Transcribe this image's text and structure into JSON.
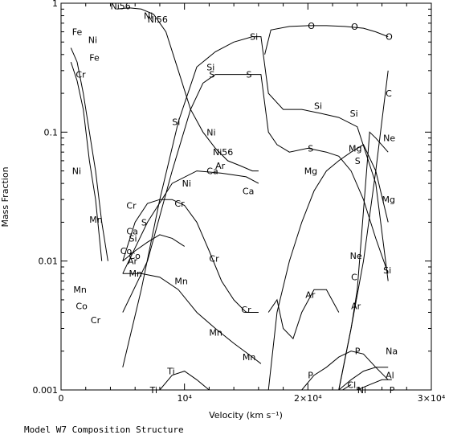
{
  "caption": "Model W7 Composition Structure",
  "chart_data": {
    "type": "line",
    "xlabel": "Velocity (km s⁻¹)",
    "ylabel": "Mass Fraction",
    "xlim": [
      0,
      30000
    ],
    "ylim": [
      0.001,
      1
    ],
    "yscale": "log",
    "x_ticks": [
      {
        "value": 0,
        "label": "0"
      },
      {
        "value": 10000,
        "label": "10⁴"
      },
      {
        "value": 20000,
        "label": "2×10⁴"
      },
      {
        "value": 30000,
        "label": "3×10⁴"
      }
    ],
    "y_ticks": [
      {
        "value": 0.001,
        "label": "0.001"
      },
      {
        "value": 0.01,
        "label": "0.01"
      },
      {
        "value": 0.1,
        "label": "0.1"
      },
      {
        "value": 1,
        "label": "1"
      }
    ],
    "series": [
      {
        "name": "Ni56",
        "x": [
          4500,
          5500,
          6500,
          7500,
          8500,
          9500,
          10500,
          11500,
          12500,
          13500,
          14500,
          15500,
          16000
        ],
        "y": [
          0.9,
          0.92,
          0.9,
          0.82,
          0.6,
          0.3,
          0.15,
          0.1,
          0.075,
          0.06,
          0.055,
          0.05,
          0.05
        ],
        "labels": [
          {
            "text": "Ni56",
            "x": 4000,
            "y": 0.95
          },
          {
            "text": "Ni56",
            "x": 7000,
            "y": 0.75
          },
          {
            "text": "Ni56",
            "x": 12300,
            "y": 0.07
          }
        ]
      },
      {
        "name": "Si",
        "x": [
          5000,
          6500,
          8000,
          9500,
          11000,
          12500,
          14000,
          15500,
          16200,
          16800,
          18000,
          19500,
          21000,
          22500,
          24000,
          25500,
          26500
        ],
        "y": [
          0.0015,
          0.006,
          0.03,
          0.12,
          0.32,
          0.42,
          0.5,
          0.55,
          0.55,
          0.2,
          0.15,
          0.15,
          0.14,
          0.13,
          0.11,
          0.04,
          0.007
        ],
        "labels": [
          {
            "text": "Si",
            "x": 11800,
            "y": 0.32
          },
          {
            "text": "Si",
            "x": 15300,
            "y": 0.55
          },
          {
            "text": "Si",
            "x": 20500,
            "y": 0.16
          },
          {
            "text": "Si",
            "x": 23400,
            "y": 0.14
          },
          {
            "text": "Si",
            "x": 26100,
            "y": 0.0085
          }
        ]
      },
      {
        "name": "S",
        "x": [
          5000,
          7000,
          9000,
          10500,
          11500,
          12500,
          13500,
          15000,
          16200,
          16800,
          17500,
          18500,
          20000,
          21500,
          22500,
          23500,
          24500,
          25500,
          26500
        ],
        "y": [
          0.004,
          0.01,
          0.05,
          0.15,
          0.24,
          0.28,
          0.28,
          0.28,
          0.28,
          0.1,
          0.08,
          0.07,
          0.075,
          0.07,
          0.065,
          0.05,
          0.03,
          0.015,
          0.008
        ],
        "labels": [
          {
            "text": "S",
            "x": 12000,
            "y": 0.28
          },
          {
            "text": "S",
            "x": 15000,
            "y": 0.28
          },
          {
            "text": "S",
            "x": 20000,
            "y": 0.075
          },
          {
            "text": "S",
            "x": 23800,
            "y": 0.06
          }
        ]
      },
      {
        "name": "O",
        "x": [
          16500,
          17000,
          18500,
          20000,
          21500,
          23000,
          24500,
          25500,
          26500
        ],
        "y": [
          0.4,
          0.62,
          0.66,
          0.67,
          0.67,
          0.66,
          0.64,
          0.6,
          0.55
        ],
        "labels": [
          {
            "text": "O",
            "x": 20000,
            "y": 0.67
          },
          {
            "text": "O",
            "x": 23500,
            "y": 0.66
          },
          {
            "text": "O",
            "x": 26300,
            "y": 0.55
          }
        ]
      },
      {
        "name": "Mg",
        "x": [
          16800,
          17500,
          18500,
          19500,
          20500,
          21500,
          22500,
          23500,
          24500,
          25500,
          26500
        ],
        "y": [
          0.001,
          0.004,
          0.01,
          0.02,
          0.035,
          0.05,
          0.06,
          0.07,
          0.08,
          0.05,
          0.02
        ],
        "labels": [
          {
            "text": "Mg",
            "x": 19700,
            "y": 0.05
          },
          {
            "text": "Mg",
            "x": 23300,
            "y": 0.075
          },
          {
            "text": "Mg",
            "x": 26000,
            "y": 0.03
          }
        ]
      },
      {
        "name": "C",
        "x": [
          22500,
          23500,
          24500,
          25500,
          26500
        ],
        "y": [
          0.001,
          0.003,
          0.01,
          0.05,
          0.3
        ],
        "labels": [
          {
            "text": "C",
            "x": 26300,
            "y": 0.2
          },
          {
            "text": "C",
            "x": 23500,
            "y": 0.0075
          }
        ]
      },
      {
        "name": "Ne",
        "x": [
          22500,
          23500,
          24000,
          25000,
          25500,
          26500
        ],
        "y": [
          0.001,
          0.003,
          0.006,
          0.1,
          0.09,
          0.07
        ],
        "labels": [
          {
            "text": "Ne",
            "x": 26100,
            "y": 0.09
          },
          {
            "text": "Ne",
            "x": 23400,
            "y": 0.011
          }
        ]
      },
      {
        "name": "Ar",
        "x": [
          16800,
          17500,
          18000,
          18800,
          19500,
          20500,
          21500,
          22500
        ],
        "y": [
          0.004,
          0.005,
          0.003,
          0.0025,
          0.004,
          0.006,
          0.006,
          0.004
        ],
        "labels": [
          {
            "text": "Ar",
            "x": 19800,
            "y": 0.0055
          },
          {
            "text": "Ar",
            "x": 23500,
            "y": 0.0045
          }
        ]
      },
      {
        "name": "Cr",
        "x": [
          5000,
          6000,
          7000,
          8000,
          9000,
          10000,
          11000,
          12000,
          13000,
          14000,
          15000,
          16000
        ],
        "y": [
          0.01,
          0.02,
          0.028,
          0.03,
          0.03,
          0.027,
          0.02,
          0.012,
          0.007,
          0.005,
          0.004,
          0.004
        ],
        "labels": [
          {
            "text": "Cr",
            "x": 12000,
            "y": 0.0105
          },
          {
            "text": "Cr",
            "x": 14600,
            "y": 0.0042
          }
        ]
      },
      {
        "name": "Mn",
        "x": [
          5000,
          6500,
          8000,
          9500,
          11000,
          12500,
          14000,
          15500,
          16200
        ],
        "y": [
          0.008,
          0.008,
          0.0075,
          0.006,
          0.004,
          0.003,
          0.0023,
          0.0018,
          0.0016
        ],
        "labels": [
          {
            "text": "Mn",
            "x": 9200,
            "y": 0.007
          },
          {
            "text": "Mn",
            "x": 12000,
            "y": 0.0028
          },
          {
            "text": "Mn",
            "x": 14700,
            "y": 0.0018
          }
        ]
      },
      {
        "name": "P",
        "x": [
          19500,
          20500,
          21500,
          22500,
          23500,
          24500,
          25500,
          26500
        ],
        "y": [
          0.001,
          0.0013,
          0.0015,
          0.0018,
          0.002,
          0.0019,
          0.0015,
          0.0012
        ],
        "labels": [
          {
            "text": "P",
            "x": 20000,
            "y": 0.0013
          },
          {
            "text": "P",
            "x": 23800,
            "y": 0.002
          },
          {
            "text": "P",
            "x": 26600,
            "y": 0.001
          }
        ]
      },
      {
        "name": "Na",
        "x": [
          22500,
          23500,
          24500,
          25500,
          26500
        ],
        "y": [
          0.001,
          0.0012,
          0.0014,
          0.0015,
          0.0015
        ],
        "labels": [
          {
            "text": "Na",
            "x": 26300,
            "y": 0.002
          }
        ]
      },
      {
        "name": "Al",
        "x": [
          24000,
          25000,
          26000,
          26800
        ],
        "y": [
          0.001,
          0.0011,
          0.0012,
          0.0012
        ],
        "labels": [
          {
            "text": "Al",
            "x": 26300,
            "y": 0.0013
          }
        ]
      },
      {
        "name": "Cl",
        "x": [
          22800,
          23500
        ],
        "y": [
          0.001,
          0.0011
        ],
        "labels": [
          {
            "text": "Cl",
            "x": 23200,
            "y": 0.0011
          }
        ]
      },
      {
        "name": "Ti",
        "x": [
          8000,
          9000,
          10000,
          11000,
          12000
        ],
        "y": [
          0.001,
          0.0013,
          0.0014,
          0.0012,
          0.001
        ],
        "labels": [
          {
            "text": "Ti",
            "x": 8600,
            "y": 0.0014
          },
          {
            "text": "Ti",
            "x": 7200,
            "y": 0.001
          }
        ]
      },
      {
        "name": "Fe",
        "x": [
          800,
          1300,
          1800,
          2300,
          2800,
          3300,
          3800
        ],
        "y": [
          0.45,
          0.35,
          0.2,
          0.1,
          0.05,
          0.02,
          0.01
        ],
        "labels": [
          {
            "text": "Fe",
            "x": 900,
            "y": 0.6
          },
          {
            "text": "Fe",
            "x": 2300,
            "y": 0.38
          }
        ]
      },
      {
        "name": "Ni",
        "x": [
          800,
          1300,
          1800,
          2300,
          2800,
          3300
        ],
        "y": [
          0.35,
          0.25,
          0.15,
          0.06,
          0.03,
          0.01
        ],
        "labels": [
          {
            "text": "Ni",
            "x": 2200,
            "y": 0.52
          },
          {
            "text": "Ni",
            "x": 900,
            "y": 0.05
          },
          {
            "text": "Ni",
            "x": 6700,
            "y": 0.8
          },
          {
            "text": "Ni",
            "x": 11800,
            "y": 0.1
          },
          {
            "text": "Ni",
            "x": 24000,
            "y": 0.001
          }
        ]
      },
      {
        "name": "Co",
        "x": [
          5000,
          6000,
          7000,
          8000,
          9000,
          10000
        ],
        "y": [
          0.01,
          0.012,
          0.014,
          0.016,
          0.015,
          0.013
        ],
        "labels": [
          {
            "text": "Co",
            "x": 1200,
            "y": 0.0045
          },
          {
            "text": "Co",
            "x": 5500,
            "y": 0.011
          },
          {
            "text": "Co",
            "x": 4800,
            "y": 0.012
          }
        ]
      },
      {
        "name": "Ca",
        "x": [
          5000,
          7000,
          9000,
          11000,
          13000,
          15000,
          16000
        ],
        "y": [
          0.008,
          0.02,
          0.04,
          0.05,
          0.048,
          0.045,
          0.04
        ],
        "labels": [
          {
            "text": "Ca",
            "x": 5300,
            "y": 0.017
          },
          {
            "text": "Ca",
            "x": 11800,
            "y": 0.05
          },
          {
            "text": "Ca",
            "x": 14700,
            "y": 0.035
          }
        ]
      }
    ],
    "annotations": [
      {
        "text": "Cr",
        "x": 1200,
        "y": 0.28
      },
      {
        "text": "Mn",
        "x": 2300,
        "y": 0.021
      },
      {
        "text": "Mn",
        "x": 1000,
        "y": 0.006
      },
      {
        "text": "Cr",
        "x": 2400,
        "y": 0.0035
      },
      {
        "text": "Cr",
        "x": 5300,
        "y": 0.027
      },
      {
        "text": "Mn",
        "x": 5500,
        "y": 0.008
      },
      {
        "text": "Ar",
        "x": 5400,
        "y": 0.01
      },
      {
        "text": "Cr",
        "x": 9200,
        "y": 0.028
      },
      {
        "text": "Si",
        "x": 9000,
        "y": 0.12
      },
      {
        "text": "Ar",
        "x": 12500,
        "y": 0.055
      },
      {
        "text": "S",
        "x": 6500,
        "y": 0.02
      },
      {
        "text": "Si",
        "x": 5500,
        "y": 0.015
      },
      {
        "text": "Ni",
        "x": 9800,
        "y": 0.04
      }
    ]
  }
}
